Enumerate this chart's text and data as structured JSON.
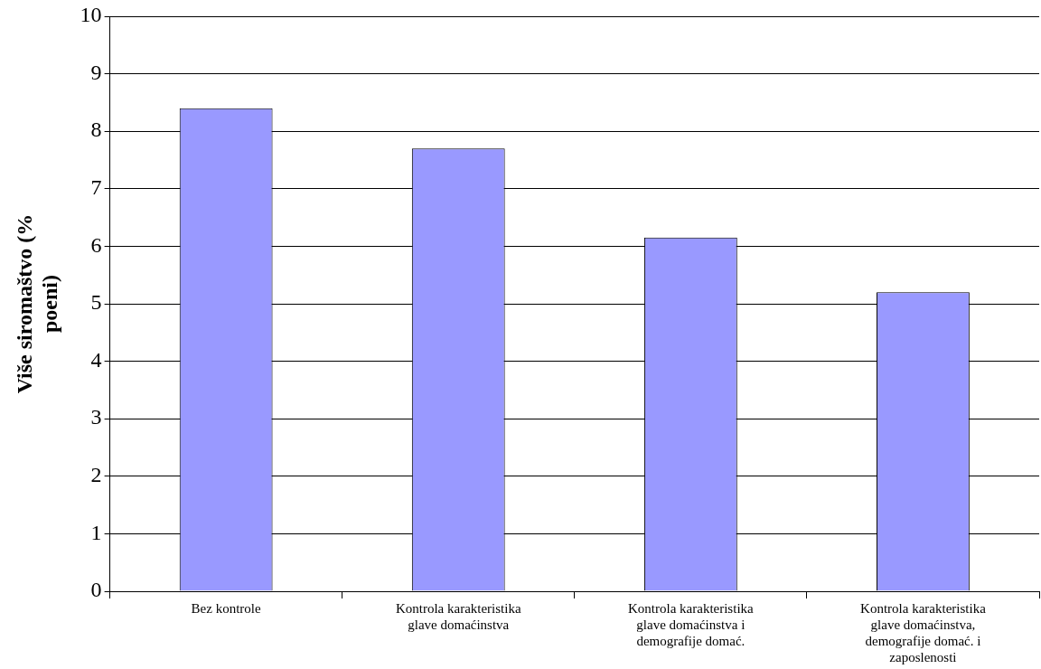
{
  "chart_data": {
    "type": "bar",
    "ylabel": "Više siromaštvo (% poeni)",
    "categories": [
      "Bez kontrole",
      "Kontrola karakteristika glave domaćinstva",
      "Kontrola karakteristika glave domaćinstva i demografije domać.",
      "Kontrola karakteristika glave domaćinstva, demografije domać. i zaposlenosti"
    ],
    "values": [
      8.4,
      7.7,
      6.15,
      5.2
    ],
    "color": "#9999ff",
    "ylim": [
      0,
      10
    ],
    "yticks": [
      0,
      1,
      2,
      3,
      4,
      5,
      6,
      7,
      8,
      9,
      10
    ],
    "grid": "y",
    "legend": false
  }
}
